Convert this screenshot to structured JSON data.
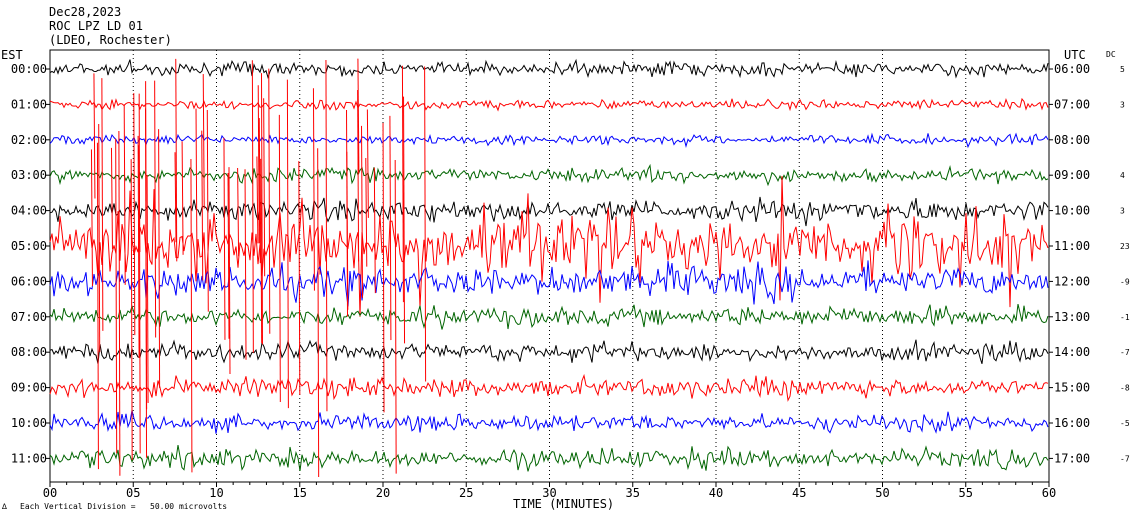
{
  "header": {
    "date": "Dec28,2023",
    "station": "ROC LPZ LD 01",
    "network": "(LDEO, Rochester)"
  },
  "left_label": "EST",
  "right_label": "UTC",
  "dc_label": "DC",
  "footer": {
    "glyph": "∆",
    "division_text": "Each Vertical Division =   50.00 microvolts"
  },
  "chart_data": {
    "type": "line",
    "xlabel": "TIME (MINUTES)",
    "xlim": [
      0,
      60
    ],
    "x_ticks": [
      "00",
      "05",
      "10",
      "15",
      "20",
      "25",
      "30",
      "35",
      "40",
      "45",
      "50",
      "55",
      "60"
    ],
    "trace_colors": [
      "#000000",
      "#ff0000",
      "#0000ff",
      "#006400"
    ],
    "rows": [
      {
        "est": "00:00",
        "utc": "06:00",
        "dc": "5",
        "amplitude": 1.0
      },
      {
        "est": "01:00",
        "utc": "07:00",
        "dc": "3",
        "amplitude": 0.7
      },
      {
        "est": "02:00",
        "utc": "08:00",
        "dc": "",
        "amplitude": 0.7
      },
      {
        "est": "03:00",
        "utc": "09:00",
        "dc": "4",
        "amplitude": 1.0
      },
      {
        "est": "04:00",
        "utc": "10:00",
        "dc": "3",
        "amplitude": 1.6
      },
      {
        "est": "05:00",
        "utc": "11:00",
        "dc": "23",
        "amplitude": 4.0
      },
      {
        "est": "06:00",
        "utc": "12:00",
        "dc": "-9",
        "amplitude": 2.2
      },
      {
        "est": "07:00",
        "utc": "13:00",
        "dc": "-1",
        "amplitude": 1.4
      },
      {
        "est": "08:00",
        "utc": "14:00",
        "dc": "-7",
        "amplitude": 1.3
      },
      {
        "est": "09:00",
        "utc": "15:00",
        "dc": "-8",
        "amplitude": 1.4
      },
      {
        "est": "10:00",
        "utc": "16:00",
        "dc": "-5",
        "amplitude": 1.2
      },
      {
        "est": "11:00",
        "utc": "17:00",
        "dc": "-7",
        "amplitude": 1.4
      }
    ]
  }
}
